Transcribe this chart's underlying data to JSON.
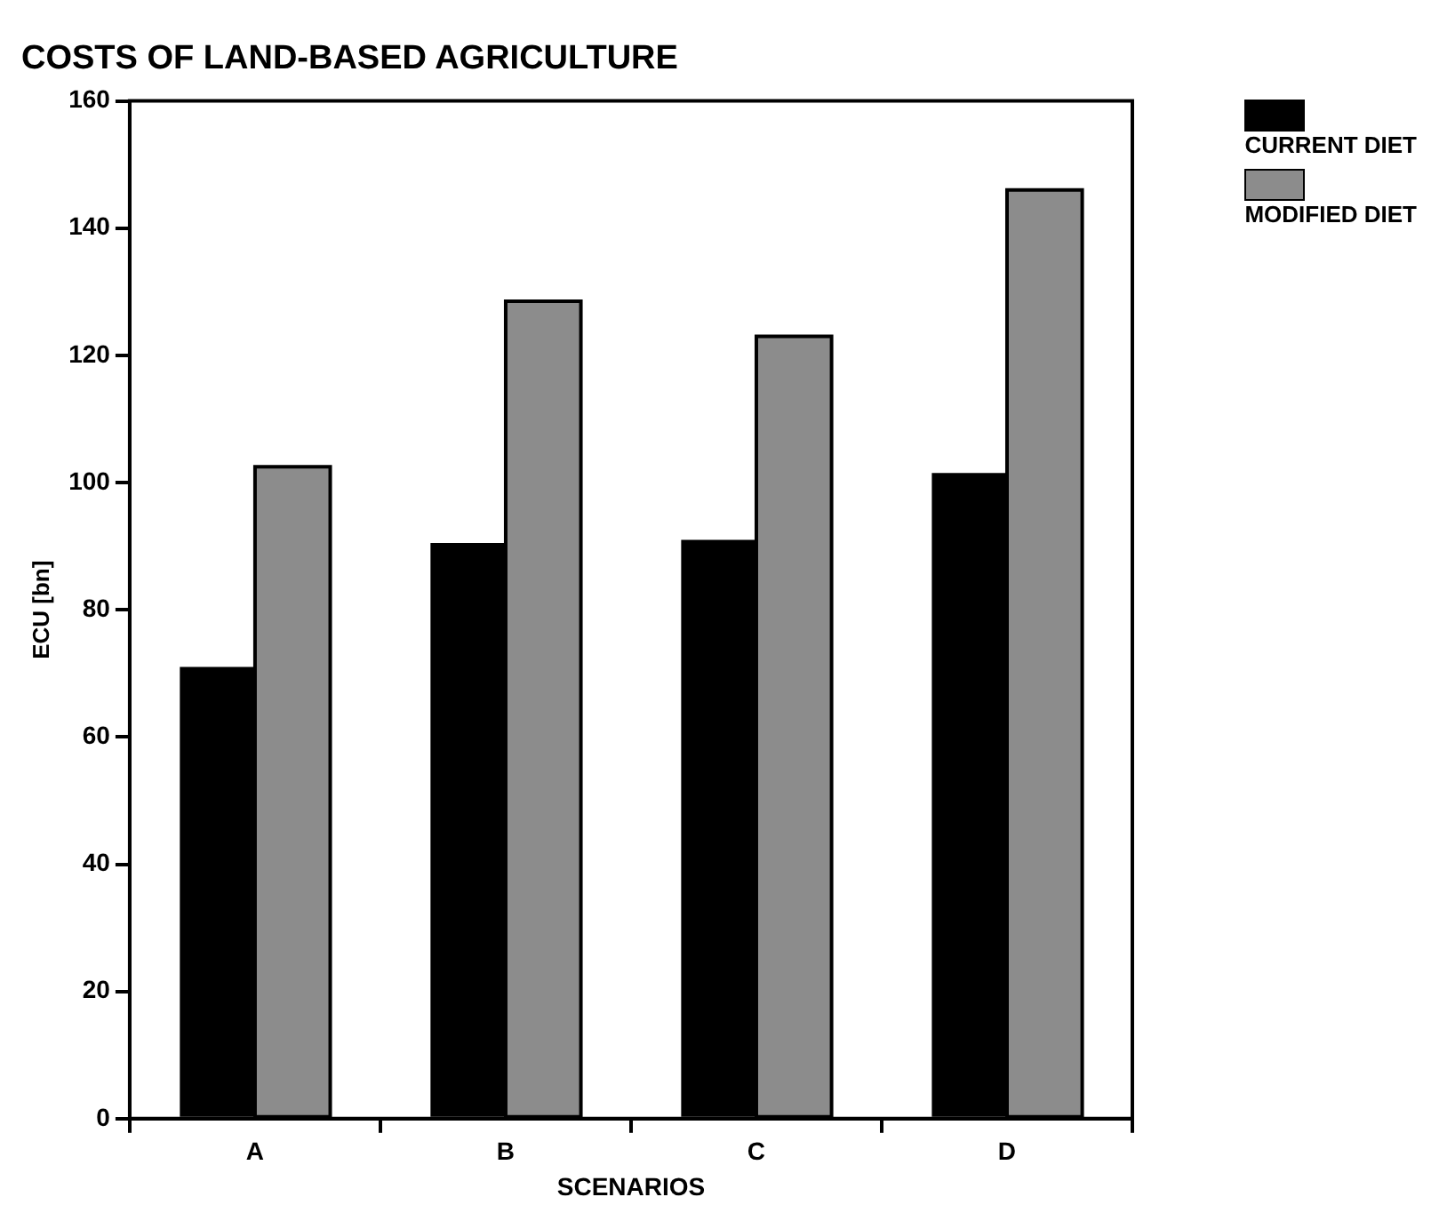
{
  "chart_data": {
    "type": "bar",
    "title": "COSTS OF LAND-BASED AGRICULTURE",
    "xlabel": "SCENARIOS",
    "ylabel": "ECU [bn]",
    "categories": [
      "A",
      "B",
      "C",
      "D"
    ],
    "series": [
      {
        "name": "CURRENT DIET",
        "color": "#000000",
        "values": [
          71,
          90.5,
          91,
          101.5
        ]
      },
      {
        "name": "MODIFIED DIET",
        "color": "#8c8c8c",
        "values": [
          102.5,
          128.5,
          123,
          146
        ]
      }
    ],
    "ylim": [
      0,
      160
    ],
    "yticks": [
      0,
      20,
      40,
      60,
      80,
      100,
      120,
      140,
      160
    ],
    "grid": false,
    "legend": "top right"
  }
}
